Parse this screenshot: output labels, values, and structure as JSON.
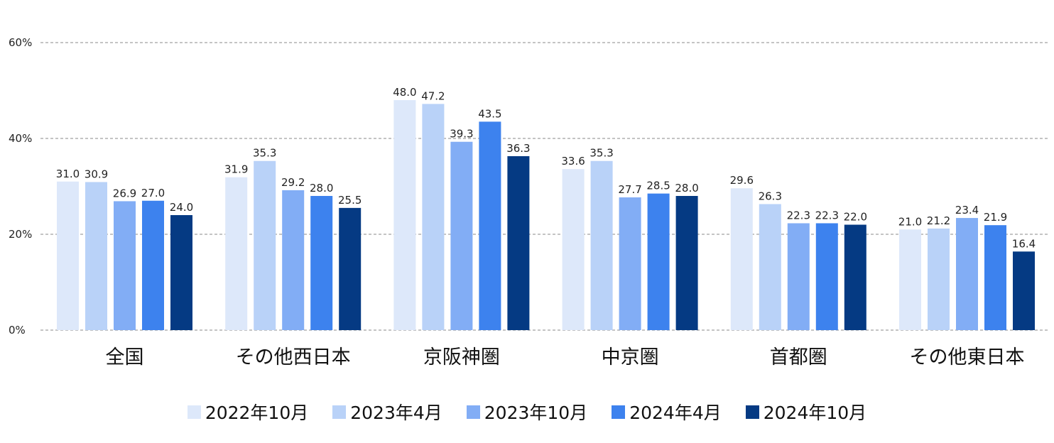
{
  "chart_data": {
    "type": "bar",
    "title": "",
    "xlabel": "",
    "ylabel": "",
    "ylim": [
      0,
      60
    ],
    "y_ticks": [
      0,
      20,
      40,
      60
    ],
    "y_tick_labels": [
      "0%",
      "20%",
      "40%",
      "60%"
    ],
    "grid": true,
    "legend_position": "bottom",
    "categories": [
      "全国",
      "その他西日本",
      "京阪神圏",
      "中京圏",
      "首都圏",
      "その他東日本"
    ],
    "series": [
      {
        "name": "2022年10月",
        "color": "#dde8fa",
        "values": [
          31.0,
          31.9,
          48.0,
          33.6,
          29.6,
          21.0
        ],
        "labels": [
          "31.0",
          "31.9",
          "48.0",
          "33.6",
          "29.6",
          "21.0"
        ]
      },
      {
        "name": "2023年4月",
        "color": "#b9d2f8",
        "values": [
          30.9,
          35.3,
          47.2,
          35.3,
          26.3,
          21.2
        ],
        "labels": [
          "30.9",
          "35.3",
          "47.2",
          "35.3",
          "26.3",
          "21.2"
        ]
      },
      {
        "name": "2023年10月",
        "color": "#82adf5",
        "values": [
          26.9,
          29.2,
          39.3,
          27.7,
          22.3,
          23.4
        ],
        "labels": [
          "26.9",
          "29.2",
          "39.3",
          "27.7",
          "22.3",
          "23.4"
        ]
      },
      {
        "name": "2024年4月",
        "color": "#3d82ee",
        "values": [
          27.0,
          28.0,
          43.5,
          28.5,
          22.3,
          21.9
        ],
        "labels": [
          "27.0",
          "28.0",
          "43.5",
          "28.5",
          "22.3",
          "21.9"
        ]
      },
      {
        "name": "2024年10月",
        "color": "#053a83",
        "values": [
          24.0,
          25.5,
          36.3,
          28.0,
          22.0,
          16.4
        ],
        "labels": [
          "24.0",
          "25.5",
          "36.3",
          "28.0",
          "22.0",
          "16.4"
        ]
      }
    ]
  }
}
